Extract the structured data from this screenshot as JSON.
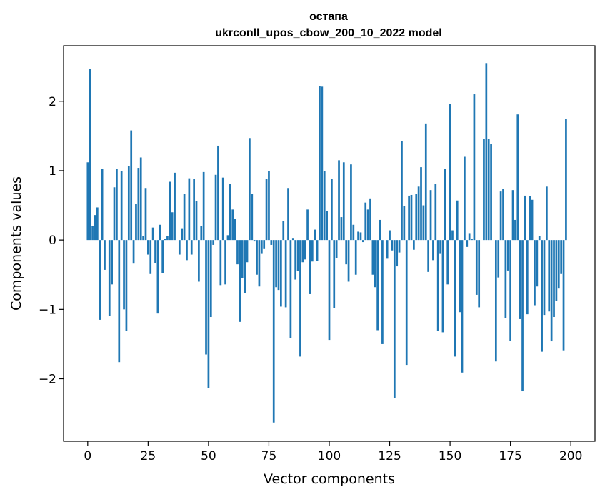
{
  "chart_data": {
    "type": "bar",
    "title_line1": "остапа",
    "title_line2": "ukrconll_upos_cbow_200_10_2022 model",
    "xlabel": "Vector components",
    "ylabel": "Components values",
    "xlim": [
      -10,
      210
    ],
    "ylim": [
      -2.9,
      2.8
    ],
    "xticks": [
      0,
      25,
      50,
      75,
      100,
      125,
      150,
      175,
      200
    ],
    "xtick_labels": [
      "0",
      "25",
      "50",
      "75",
      "100",
      "125",
      "150",
      "175",
      "200"
    ],
    "yticks": [
      -2,
      -1,
      0,
      1,
      2
    ],
    "ytick_labels": [
      "−2",
      "−1",
      "0",
      "1",
      "2"
    ],
    "bar_color": "#1f77b4",
    "values": [
      1.12,
      2.47,
      0.2,
      0.36,
      0.47,
      -1.15,
      1.03,
      -0.43,
      0.0,
      -1.09,
      -0.64,
      0.76,
      1.03,
      -1.76,
      0.99,
      -1.0,
      -1.31,
      1.07,
      1.58,
      -0.34,
      0.52,
      1.04,
      1.19,
      0.06,
      0.75,
      -0.21,
      -0.49,
      0.18,
      -0.33,
      -1.06,
      0.22,
      -0.48,
      0.02,
      0.06,
      0.84,
      0.4,
      0.97,
      0.0,
      -0.21,
      0.17,
      0.67,
      -0.29,
      0.89,
      -0.21,
      0.88,
      0.56,
      -0.6,
      0.2,
      0.98,
      -1.65,
      -2.13,
      -1.11,
      -0.07,
      0.94,
      1.36,
      -0.65,
      0.9,
      -0.64,
      0.07,
      0.81,
      0.44,
      0.3,
      -0.35,
      -1.18,
      -0.55,
      -0.77,
      -0.32,
      1.47,
      0.67,
      -0.02,
      -0.5,
      -0.67,
      -0.2,
      -0.12,
      0.88,
      0.99,
      -0.07,
      -2.63,
      -0.68,
      -0.72,
      -0.96,
      0.27,
      -0.97,
      0.75,
      -1.41,
      0.03,
      -0.57,
      -0.45,
      -1.68,
      -0.32,
      -0.28,
      0.44,
      -0.78,
      -0.31,
      0.15,
      -0.3,
      2.22,
      2.21,
      0.99,
      0.42,
      -1.44,
      0.88,
      -0.98,
      -0.26,
      1.15,
      0.33,
      1.12,
      -0.35,
      -0.6,
      1.09,
      0.22,
      -0.5,
      0.12,
      0.11,
      -0.03,
      0.54,
      0.44,
      0.6,
      -0.5,
      -0.68,
      -1.3,
      0.29,
      -1.5,
      0.0,
      -0.27,
      0.14,
      -0.15,
      -2.28,
      -0.38,
      -0.18,
      1.43,
      0.49,
      -1.8,
      0.64,
      0.65,
      -0.14,
      0.66,
      0.77,
      1.05,
      0.5,
      1.68,
      -0.46,
      0.72,
      -0.29,
      0.81,
      -1.31,
      -0.2,
      -1.33,
      1.03,
      -0.64,
      1.96,
      0.14,
      -1.68,
      0.57,
      -1.04,
      -1.91,
      1.2,
      -0.1,
      0.1,
      0.02,
      2.1,
      -0.79,
      -0.97,
      0.0,
      1.46,
      2.55,
      1.46,
      1.38,
      0.0,
      -1.75,
      -0.54,
      0.7,
      0.74,
      -1.12,
      -0.44,
      -1.45,
      0.72,
      0.29,
      1.81,
      -1.14,
      -2.18,
      0.64,
      -1.07,
      0.63,
      0.58,
      -0.94,
      -0.67,
      0.06,
      -1.61,
      -1.08,
      0.77,
      -1.03,
      -1.46,
      -1.11,
      -0.88,
      -0.7,
      -0.49,
      -1.59,
      1.75,
      0.0
    ]
  }
}
